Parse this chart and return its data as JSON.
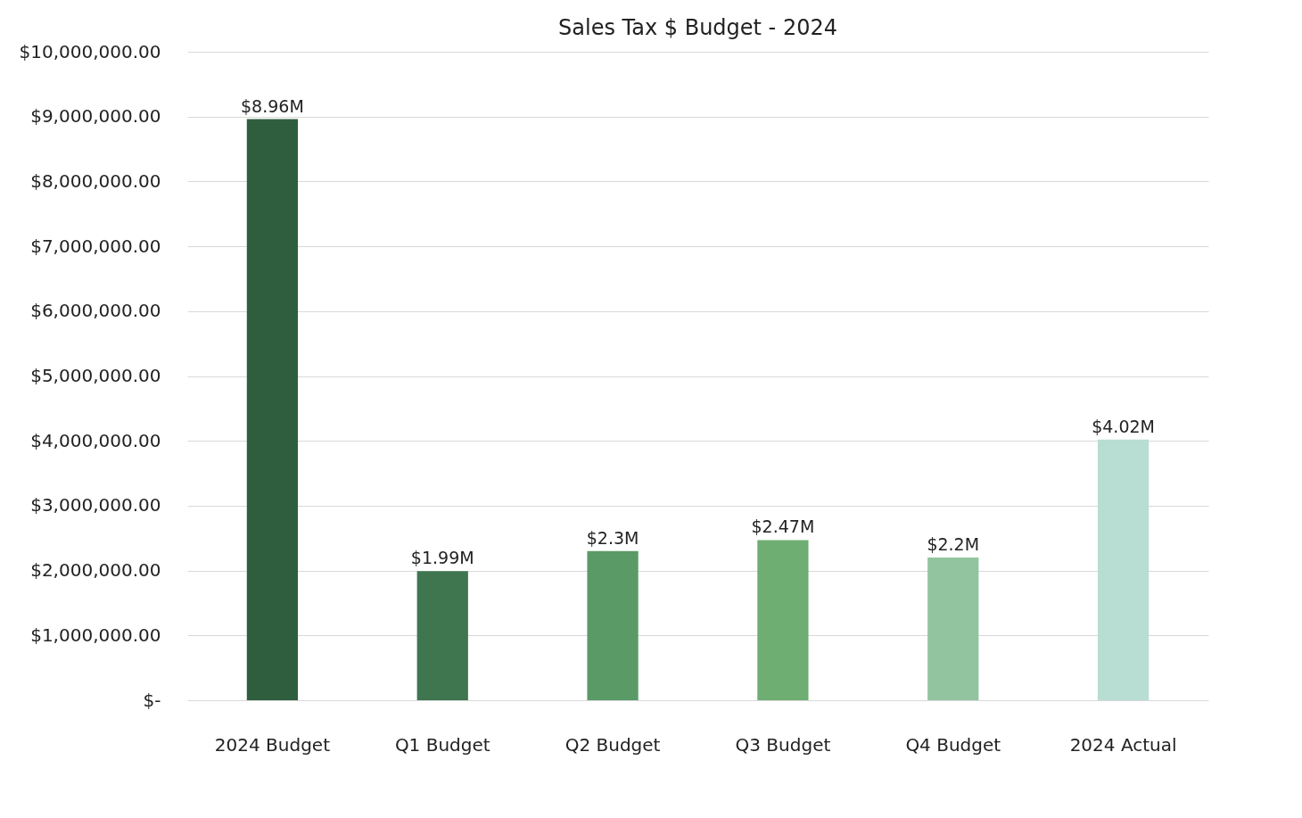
{
  "chart_data": {
    "type": "bar",
    "title": "Sales Tax $ Budget - 2024",
    "categories": [
      "2024 Budget",
      "Q1 Budget",
      "Q2 Budget",
      "Q3 Budget",
      "Q4 Budget",
      "2024 Actual"
    ],
    "values": [
      8960000,
      1990000,
      2300000,
      2470000,
      2200000,
      4020000
    ],
    "colors": [
      "#2f5e3f",
      "#3f7650",
      "#5a9a66",
      "#6eae72",
      "#92c4a0",
      "#b8ddd2"
    ],
    "value_labels": [
      "$8.96M",
      "$1.99M",
      "$2.3M",
      "$2.47M",
      "$2.2M",
      "$4.02M"
    ],
    "ylim": [
      0,
      10000000
    ],
    "yticks": [
      {
        "value": 0,
        "label": "$-"
      },
      {
        "value": 1000000,
        "label": "$1,000,000.00"
      },
      {
        "value": 2000000,
        "label": "$2,000,000.00"
      },
      {
        "value": 3000000,
        "label": "$3,000,000.00"
      },
      {
        "value": 4000000,
        "label": "$4,000,000.00"
      },
      {
        "value": 5000000,
        "label": "$5,000,000.00"
      },
      {
        "value": 6000000,
        "label": "$6,000,000.00"
      },
      {
        "value": 7000000,
        "label": "$7,000,000.00"
      },
      {
        "value": 8000000,
        "label": "$8,000,000.00"
      },
      {
        "value": 9000000,
        "label": "$9,000,000.00"
      },
      {
        "value": 10000000,
        "label": "$10,000,000.00"
      }
    ],
    "grid": "y"
  }
}
